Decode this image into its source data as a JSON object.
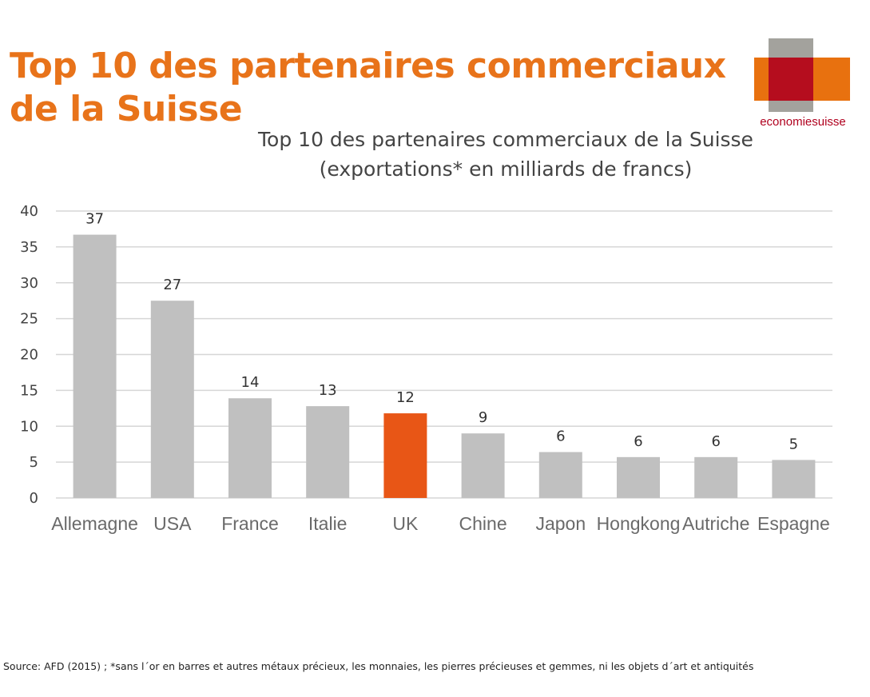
{
  "headline": "Top 10 des partenaires commerciaux de la Suisse",
  "logo": {
    "text": "economiesuisse",
    "colors": {
      "grey": "#a3a29d",
      "orange": "#e8710f",
      "red": "#b50d1e"
    }
  },
  "colors": {
    "bar": "#c0c0c0",
    "highlight": "#e85616",
    "grid": "#d6d6d6",
    "headline": "#e8731a"
  },
  "chart_data": {
    "type": "bar",
    "title": "Top 10 des partenaires commerciaux de la Suisse",
    "subtitle": "(exportations* en milliards de francs)",
    "xlabel": "",
    "ylabel": "",
    "categories": [
      "Allemagne",
      "USA",
      "France",
      "Italie",
      "UK",
      "Chine",
      "Japon",
      "Hongkong",
      "Autriche",
      "Espagne"
    ],
    "values": [
      36.7,
      27.5,
      13.9,
      12.8,
      11.8,
      9.0,
      6.4,
      5.7,
      5.7,
      5.3
    ],
    "data_labels": [
      "37",
      "27",
      "14",
      "13",
      "12",
      "9",
      "6",
      "6",
      "6",
      "5"
    ],
    "highlight_category": "UK",
    "ylim": [
      0,
      40
    ],
    "yticks": [
      0,
      5,
      10,
      15,
      20,
      25,
      30,
      35,
      40
    ],
    "grid": true,
    "legend": "none"
  },
  "source": "Source: AFD (2015) ; *sans l´or en barres et autres métaux précieux, les monnaies, les pierres précieuses et gemmes, ni les objets d´art et antiquités"
}
